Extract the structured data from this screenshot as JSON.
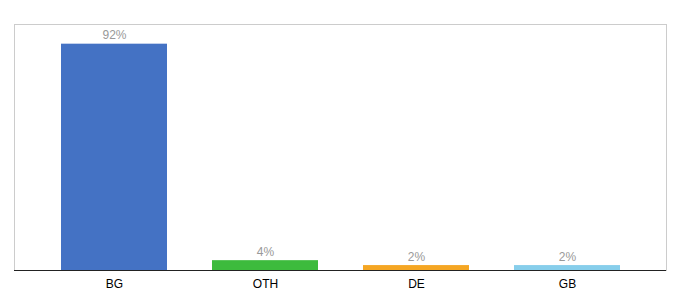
{
  "chart_data": {
    "type": "bar",
    "categories": [
      "BG",
      "OTH",
      "DE",
      "GB"
    ],
    "values": [
      92,
      4,
      2,
      2
    ],
    "value_labels": [
      "92%",
      "4%",
      "2%",
      "2%"
    ],
    "colors": [
      "#4472c4",
      "#3dbb3d",
      "#f5a623",
      "#87ceeb"
    ],
    "ylim": [
      0,
      100
    ],
    "grid": false,
    "data_labels": true,
    "tick_labels": "x"
  }
}
